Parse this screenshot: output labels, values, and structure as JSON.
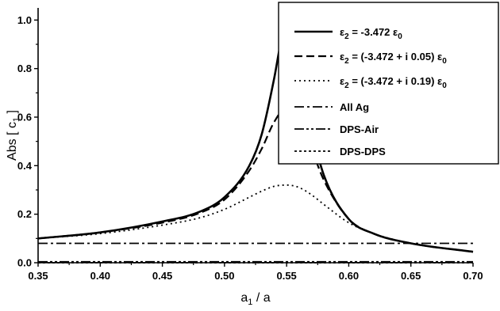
{
  "chart_data": {
    "type": "line",
    "xlabel": {
      "main": "a",
      "sub": "1",
      "rest": " / a"
    },
    "ylabel": {
      "main": "Abs [ c",
      "sub": "1",
      "rest": " ]"
    },
    "xlim": [
      0.35,
      0.7
    ],
    "ylim": [
      0.0,
      1.05
    ],
    "xticks": [
      0.35,
      0.4,
      0.45,
      0.5,
      0.55,
      0.6,
      0.65,
      0.7
    ],
    "xtick_labels": [
      "0.35",
      "0.40",
      "0.45",
      "0.50",
      "0.55",
      "0.60",
      "0.65",
      "0.70"
    ],
    "yticks": [
      0.0,
      0.2,
      0.4,
      0.6,
      0.8,
      1.0
    ],
    "ytick_labels": [
      "0.0",
      "0.2",
      "0.4",
      "0.6",
      "0.8",
      "1.0"
    ],
    "grid": false,
    "legend_position": "top-right",
    "series": [
      {
        "legend": [
          {
            "t": "ε"
          },
          {
            "t": "2",
            "sub": true
          },
          {
            "t": " = -3.472 ε"
          },
          {
            "t": "0",
            "sub": true
          }
        ],
        "style": "solid",
        "x": [
          0.35,
          0.4,
          0.45,
          0.48,
          0.5,
          0.52,
          0.53,
          0.54,
          0.545,
          0.55,
          0.555,
          0.56,
          0.57,
          0.58,
          0.6,
          0.62,
          0.65,
          0.7
        ],
        "y": [
          0.1,
          0.125,
          0.17,
          0.21,
          0.27,
          0.4,
          0.53,
          0.76,
          0.9,
          1.0,
          0.93,
          0.8,
          0.55,
          0.36,
          0.18,
          0.12,
          0.08,
          0.045
        ]
      },
      {
        "legend": [
          {
            "t": "ε"
          },
          {
            "t": "2",
            "sub": true
          },
          {
            "t": " = (-3.472 + i 0.05) ε"
          },
          {
            "t": "0",
            "sub": true
          }
        ],
        "style": "dash",
        "x": [
          0.35,
          0.4,
          0.45,
          0.48,
          0.5,
          0.52,
          0.53,
          0.54,
          0.55,
          0.56,
          0.57,
          0.58,
          0.6,
          0.62,
          0.65,
          0.7
        ],
        "y": [
          0.1,
          0.125,
          0.165,
          0.205,
          0.26,
          0.38,
          0.47,
          0.58,
          0.64,
          0.6,
          0.47,
          0.34,
          0.18,
          0.12,
          0.08,
          0.045
        ]
      },
      {
        "legend": [
          {
            "t": "ε"
          },
          {
            "t": "2",
            "sub": true
          },
          {
            "t": " = (-3.472 + i 0.19) ε"
          },
          {
            "t": "0",
            "sub": true
          }
        ],
        "style": "dot",
        "x": [
          0.35,
          0.4,
          0.45,
          0.48,
          0.5,
          0.52,
          0.53,
          0.54,
          0.55,
          0.56,
          0.57,
          0.58,
          0.6,
          0.62,
          0.65,
          0.7
        ],
        "y": [
          0.1,
          0.12,
          0.155,
          0.185,
          0.22,
          0.27,
          0.295,
          0.315,
          0.32,
          0.31,
          0.28,
          0.24,
          0.165,
          0.12,
          0.08,
          0.045
        ]
      },
      {
        "legend": [
          {
            "t": "All Ag"
          }
        ],
        "style": "dashdot",
        "x": [
          0.35,
          0.7
        ],
        "y": [
          0.08,
          0.08
        ]
      },
      {
        "legend": [
          {
            "t": "DPS-Air"
          }
        ],
        "style": "dashdotdot",
        "x": [
          0.35,
          0.7
        ],
        "y": [
          0.004,
          0.004
        ]
      },
      {
        "legend": [
          {
            "t": "DPS-DPS"
          }
        ],
        "style": "shortdash",
        "x": [
          0.35,
          0.7
        ],
        "y": [
          0.0,
          0.0
        ]
      }
    ]
  }
}
